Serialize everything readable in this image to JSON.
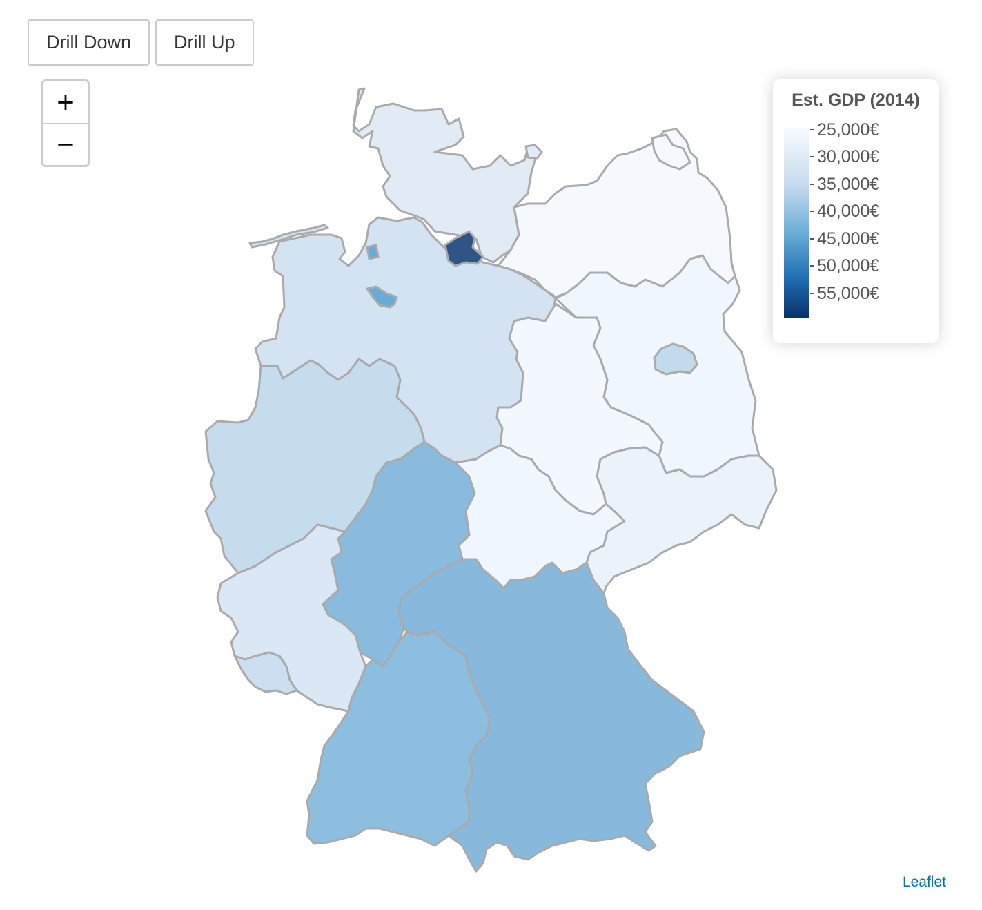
{
  "controls": {
    "drill_down_label": "Drill Down",
    "drill_up_label": "Drill Up",
    "zoom_in_label": "+",
    "zoom_out_label": "−"
  },
  "legend": {
    "title": "Est. GDP (2014)",
    "min_value": 25000,
    "max_value": 60000,
    "color_low": "#f7fbff",
    "color_high": "#08306b",
    "labels": [
      "25,000€",
      "30,000€",
      "35,000€",
      "40,000€",
      "45,000€",
      "50,000€",
      "55,000€"
    ]
  },
  "attribution": "Leaflet",
  "regions": [
    {
      "id": "schleswig-holstein",
      "fill": "#e1ebf6"
    },
    {
      "id": "mecklenburg-vorpommern",
      "fill": "#f5f9fe"
    },
    {
      "id": "niedersachsen",
      "fill": "#d3e3f1"
    },
    {
      "id": "hamburg",
      "fill": "#2f5486"
    },
    {
      "id": "bremen",
      "fill": "#6aaad6"
    },
    {
      "id": "brandenburg",
      "fill": "#f0f6fd"
    },
    {
      "id": "berlin",
      "fill": "#c3daee"
    },
    {
      "id": "sachsen-anhalt",
      "fill": "#f3f8fe"
    },
    {
      "id": "nordrhein-westfalen",
      "fill": "#c4dceb"
    },
    {
      "id": "hessen",
      "fill": "#88bbdd"
    },
    {
      "id": "thueringen",
      "fill": "#f0f6fd"
    },
    {
      "id": "sachsen",
      "fill": "#eaf2fa"
    },
    {
      "id": "rheinland-pfalz",
      "fill": "#dae7f5"
    },
    {
      "id": "saarland",
      "fill": "#cbdff0"
    },
    {
      "id": "baden-wuerttemberg",
      "fill": "#8cbedf"
    },
    {
      "id": "bayern",
      "fill": "#86b9dc"
    }
  ]
}
